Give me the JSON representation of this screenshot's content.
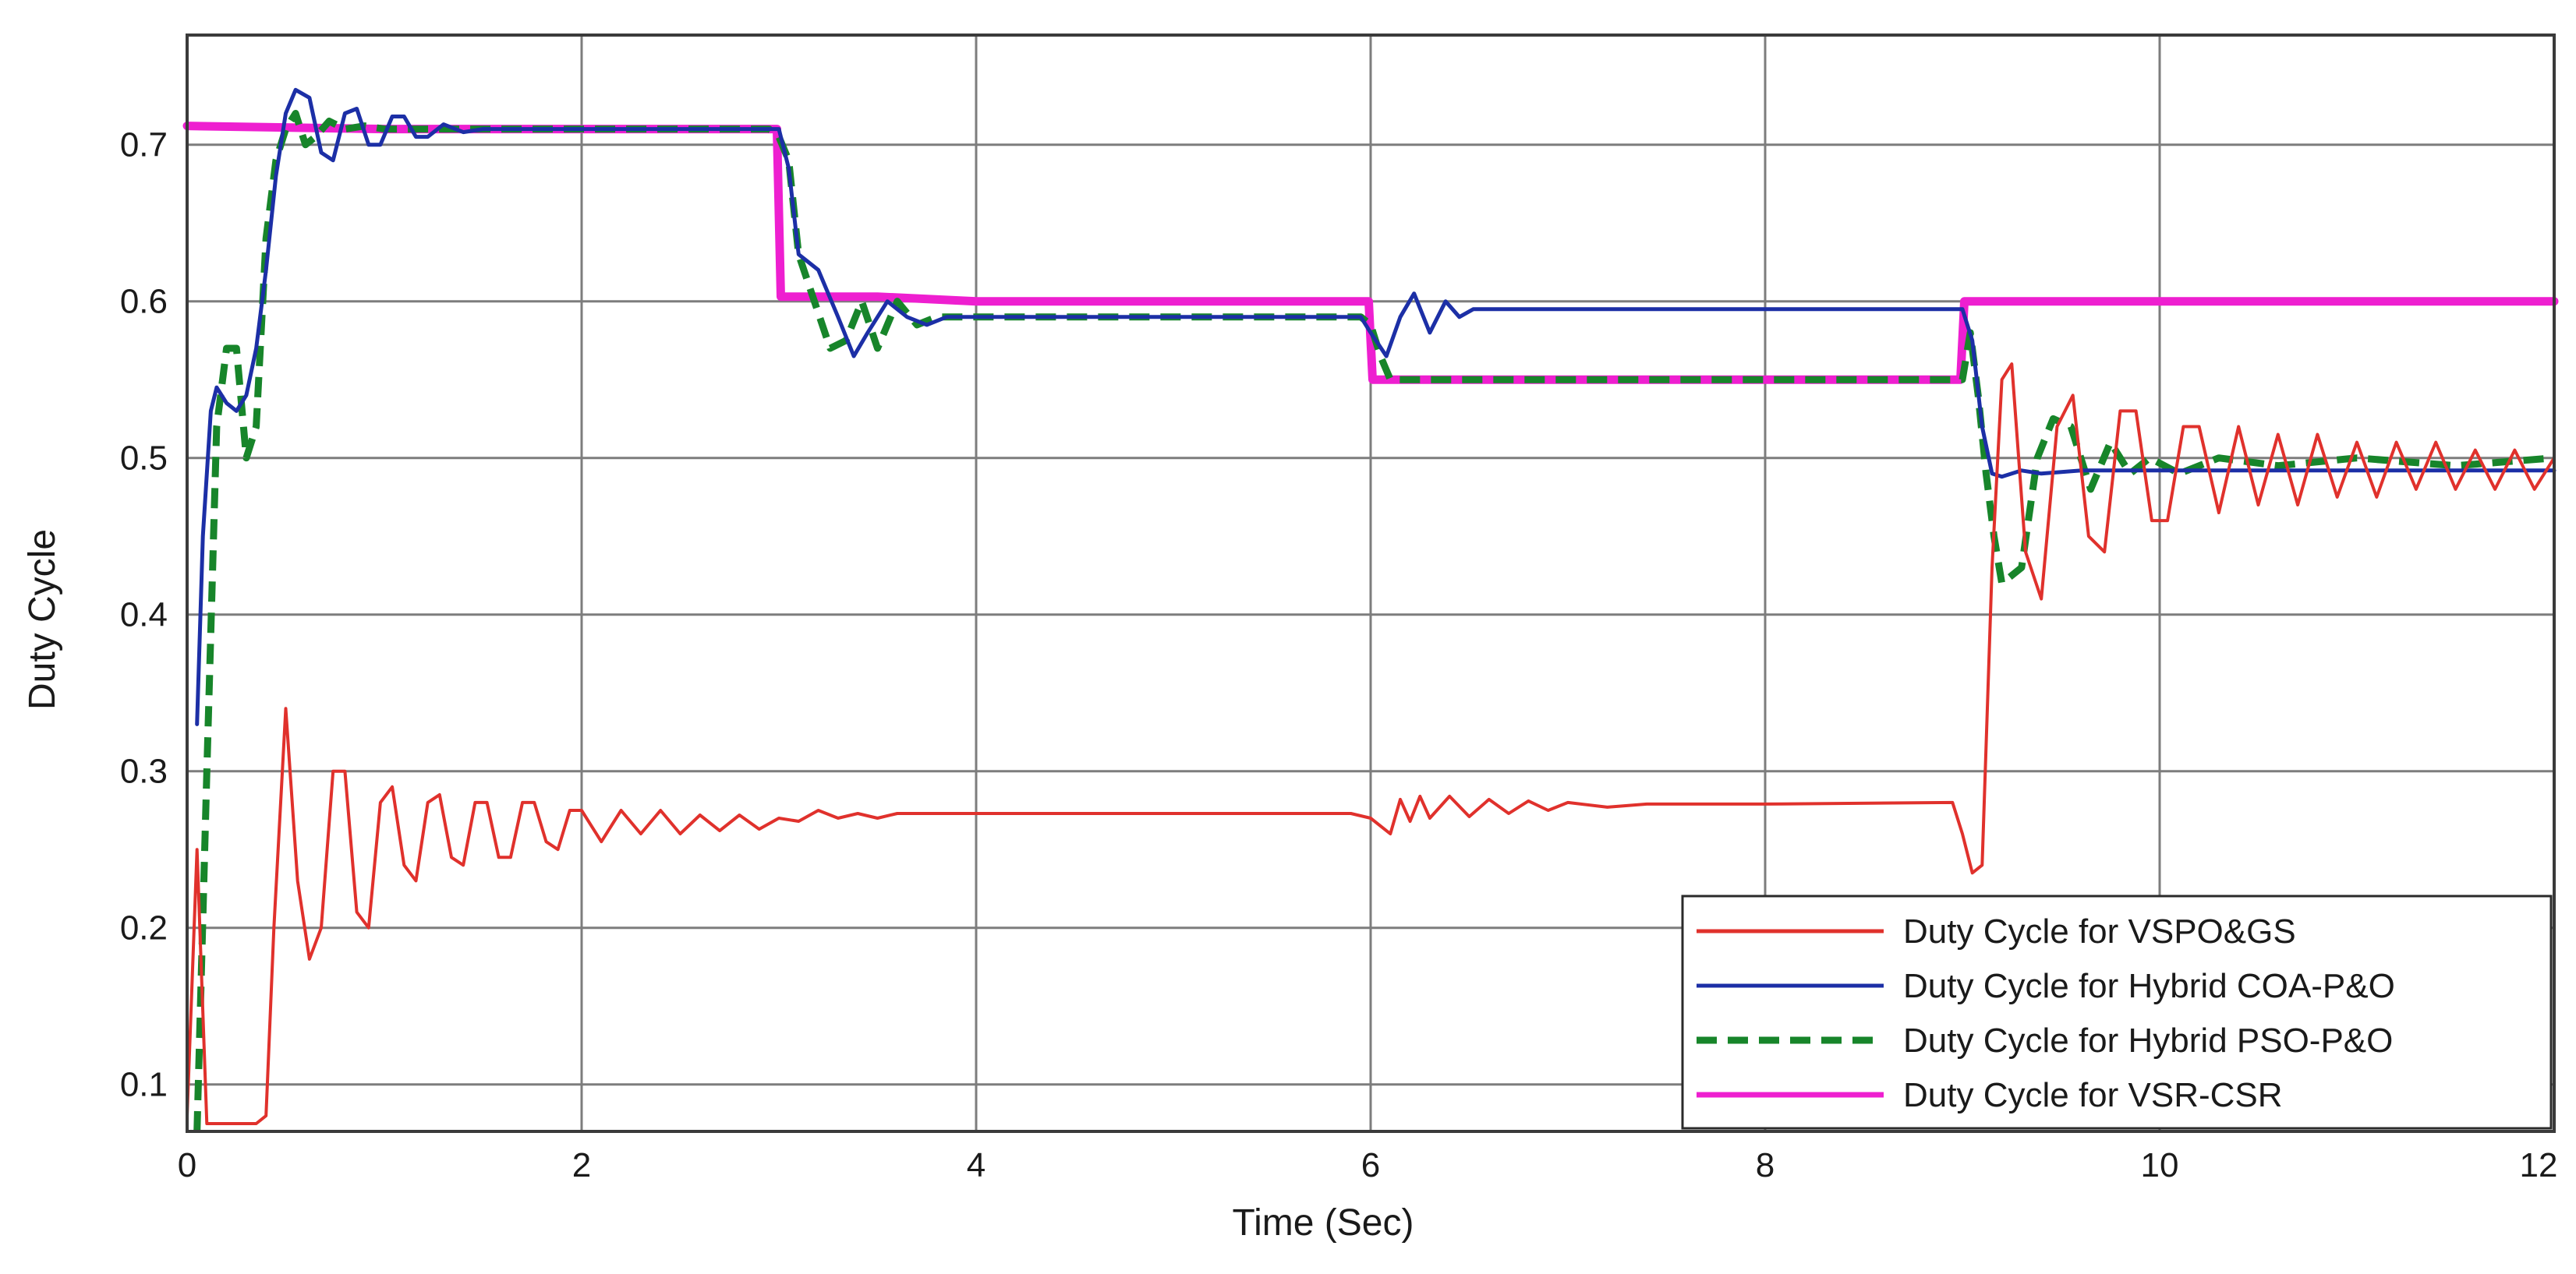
{
  "chart_data": {
    "type": "line",
    "xlabel": "Time (Sec)",
    "ylabel": "Duty Cycle",
    "xlim": [
      0,
      12
    ],
    "ylim": [
      0.07,
      0.77
    ],
    "xticks": [
      0,
      2,
      4,
      6,
      8,
      10,
      12
    ],
    "yticks": [
      0.1,
      0.2,
      0.3,
      0.4,
      0.5,
      0.6,
      0.7
    ],
    "xtick_labels": [
      "0",
      "2",
      "4",
      "6",
      "8",
      "10",
      "12"
    ],
    "ytick_labels": [
      "0.1",
      "0.2",
      "0.3",
      "0.4",
      "0.5",
      "0.6",
      "0.7"
    ],
    "grid": true,
    "legend_position": "bottom-right",
    "series": [
      {
        "name": "Duty Cycle for VSPO&GS",
        "color": "#e0312c",
        "style": "solid",
        "x": [
          0,
          0.05,
          0.1,
          0.15,
          0.35,
          0.4,
          0.44,
          0.5,
          0.56,
          0.62,
          0.68,
          0.74,
          0.8,
          0.86,
          0.92,
          0.98,
          1.04,
          1.1,
          1.16,
          1.22,
          1.28,
          1.34,
          1.4,
          1.46,
          1.52,
          1.58,
          1.64,
          1.7,
          1.76,
          1.82,
          1.88,
          1.94,
          2.0,
          2.1,
          2.2,
          2.3,
          2.4,
          2.5,
          2.6,
          2.7,
          2.8,
          2.9,
          3.0,
          3.1,
          3.2,
          3.3,
          3.4,
          3.5,
          3.6,
          4.0,
          5.0,
          5.9,
          6.0,
          6.1,
          6.15,
          6.2,
          6.25,
          6.3,
          6.4,
          6.5,
          6.6,
          6.7,
          6.8,
          6.9,
          7.0,
          7.2,
          7.4,
          8.0,
          8.95,
          9.0,
          9.05,
          9.1,
          9.15,
          9.2,
          9.25,
          9.32,
          9.4,
          9.48,
          9.56,
          9.64,
          9.72,
          9.8,
          9.88,
          9.96,
          10.04,
          10.12,
          10.2,
          10.3,
          10.4,
          10.5,
          10.6,
          10.7,
          10.8,
          10.9,
          11.0,
          11.1,
          11.2,
          11.3,
          11.4,
          11.5,
          11.6,
          11.7,
          11.8,
          11.9,
          12.0
        ],
        "y": [
          0.08,
          0.25,
          0.075,
          0.075,
          0.075,
          0.08,
          0.2,
          0.34,
          0.23,
          0.18,
          0.2,
          0.3,
          0.3,
          0.21,
          0.2,
          0.28,
          0.29,
          0.24,
          0.23,
          0.28,
          0.285,
          0.245,
          0.24,
          0.28,
          0.28,
          0.245,
          0.245,
          0.28,
          0.28,
          0.255,
          0.25,
          0.275,
          0.275,
          0.255,
          0.275,
          0.26,
          0.275,
          0.26,
          0.272,
          0.262,
          0.272,
          0.263,
          0.27,
          0.268,
          0.275,
          0.27,
          0.273,
          0.27,
          0.273,
          0.273,
          0.273,
          0.273,
          0.27,
          0.26,
          0.282,
          0.268,
          0.284,
          0.27,
          0.284,
          0.271,
          0.282,
          0.273,
          0.281,
          0.275,
          0.28,
          0.277,
          0.279,
          0.279,
          0.28,
          0.26,
          0.235,
          0.24,
          0.43,
          0.55,
          0.56,
          0.44,
          0.41,
          0.52,
          0.54,
          0.45,
          0.44,
          0.53,
          0.53,
          0.46,
          0.46,
          0.52,
          0.52,
          0.465,
          0.52,
          0.47,
          0.515,
          0.47,
          0.515,
          0.475,
          0.51,
          0.475,
          0.51,
          0.48,
          0.51,
          0.48,
          0.505,
          0.48,
          0.505,
          0.48,
          0.5
        ]
      },
      {
        "name": "Duty Cycle for Hybrid COA-P&O",
        "color": "#1c2fa6",
        "style": "solid",
        "x": [
          0.05,
          0.08,
          0.12,
          0.15,
          0.2,
          0.25,
          0.3,
          0.35,
          0.4,
          0.45,
          0.5,
          0.55,
          0.62,
          0.68,
          0.74,
          0.8,
          0.86,
          0.92,
          0.98,
          1.04,
          1.1,
          1.16,
          1.22,
          1.3,
          1.4,
          1.5,
          2.0,
          2.5,
          3.0,
          3.05,
          3.1,
          3.15,
          3.2,
          3.3,
          3.38,
          3.45,
          3.55,
          3.65,
          3.75,
          3.85,
          4.0,
          5.0,
          5.95,
          6.0,
          6.08,
          6.15,
          6.22,
          6.3,
          6.38,
          6.45,
          6.52,
          6.6,
          7.0,
          8.0,
          9.0,
          9.05,
          9.1,
          9.15,
          9.2,
          9.3,
          9.4,
          9.6,
          10.0,
          11.0,
          12.0
        ],
        "y": [
          0.33,
          0.45,
          0.53,
          0.545,
          0.535,
          0.53,
          0.54,
          0.57,
          0.62,
          0.68,
          0.72,
          0.735,
          0.73,
          0.695,
          0.69,
          0.72,
          0.723,
          0.7,
          0.7,
          0.718,
          0.718,
          0.705,
          0.705,
          0.713,
          0.708,
          0.71,
          0.71,
          0.71,
          0.71,
          0.685,
          0.63,
          0.625,
          0.62,
          0.59,
          0.565,
          0.58,
          0.6,
          0.59,
          0.585,
          0.59,
          0.59,
          0.59,
          0.59,
          0.58,
          0.565,
          0.59,
          0.605,
          0.58,
          0.6,
          0.59,
          0.595,
          0.595,
          0.595,
          0.595,
          0.595,
          0.575,
          0.52,
          0.49,
          0.488,
          0.492,
          0.49,
          0.492,
          0.492,
          0.492,
          0.492
        ]
      },
      {
        "name": "Duty Cycle for Hybrid PSO-P&O",
        "color": "#17852a",
        "style": "dashed",
        "x": [
          0.05,
          0.1,
          0.15,
          0.2,
          0.25,
          0.3,
          0.35,
          0.4,
          0.45,
          0.5,
          0.55,
          0.6,
          0.65,
          0.72,
          0.8,
          0.9,
          1.0,
          1.2,
          1.5,
          2.0,
          2.5,
          2.95,
          3.0,
          3.05,
          3.1,
          3.18,
          3.26,
          3.34,
          3.42,
          3.5,
          3.6,
          3.7,
          3.8,
          4.0,
          5.0,
          5.95,
          6.0,
          6.05,
          6.1,
          6.5,
          7.0,
          8.0,
          9.0,
          9.04,
          9.08,
          9.12,
          9.16,
          9.2,
          9.25,
          9.3,
          9.38,
          9.46,
          9.55,
          9.65,
          9.75,
          9.85,
          9.95,
          10.1,
          10.3,
          10.6,
          11.0,
          11.5,
          12.0
        ],
        "y": [
          0.07,
          0.3,
          0.52,
          0.57,
          0.57,
          0.5,
          0.52,
          0.64,
          0.69,
          0.71,
          0.72,
          0.7,
          0.705,
          0.715,
          0.71,
          0.712,
          0.71,
          0.71,
          0.71,
          0.71,
          0.71,
          0.71,
          0.705,
          0.69,
          0.63,
          0.6,
          0.57,
          0.575,
          0.6,
          0.57,
          0.6,
          0.585,
          0.59,
          0.59,
          0.59,
          0.59,
          0.585,
          0.565,
          0.55,
          0.55,
          0.55,
          0.55,
          0.55,
          0.58,
          0.54,
          0.49,
          0.45,
          0.42,
          0.425,
          0.43,
          0.5,
          0.525,
          0.52,
          0.48,
          0.51,
          0.49,
          0.5,
          0.49,
          0.5,
          0.495,
          0.5,
          0.495,
          0.5
        ]
      },
      {
        "name": "Duty Cycle for VSR-CSR",
        "color": "#ee1fd0",
        "style": "solid",
        "x": [
          0,
          1.0,
          2.0,
          2.99,
          3.01,
          3.5,
          4.0,
          5.0,
          5.99,
          6.01,
          7.0,
          8.0,
          8.99,
          9.01,
          10.0,
          11.0,
          12.0
        ],
        "y": [
          0.712,
          0.71,
          0.71,
          0.71,
          0.603,
          0.603,
          0.6,
          0.6,
          0.6,
          0.55,
          0.55,
          0.55,
          0.55,
          0.6,
          0.6,
          0.6,
          0.6
        ]
      }
    ]
  }
}
